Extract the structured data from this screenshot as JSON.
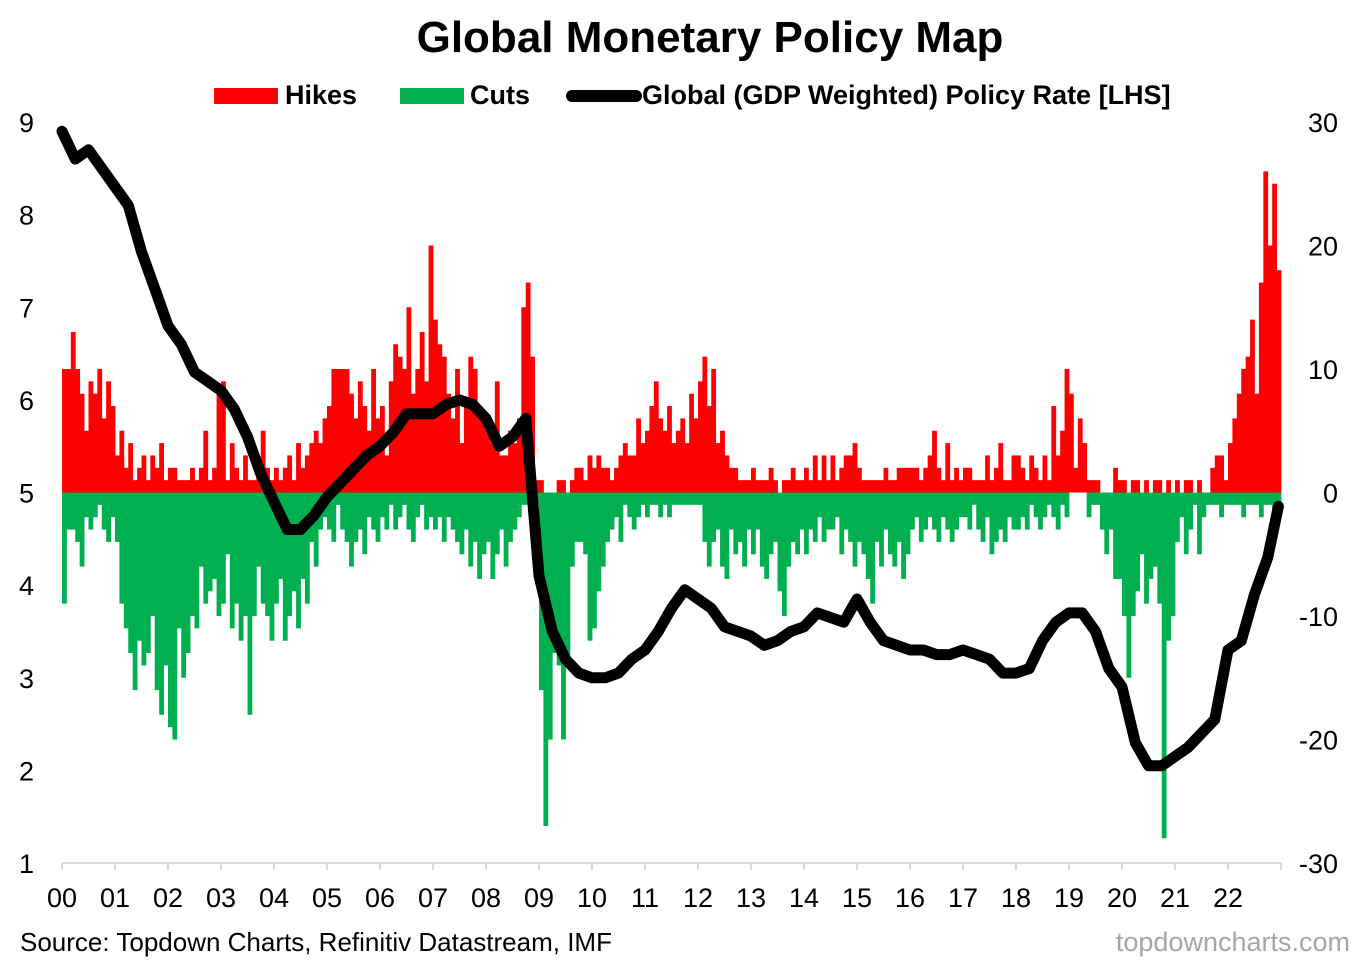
{
  "chart_data": {
    "type": "bar+line",
    "title": "Global Monetary Policy Map",
    "source": "Source: Topdown Charts, Refinitiv Datastream, IMF",
    "watermark": "topdowncharts.com",
    "legend": {
      "placement": "top",
      "entries": [
        {
          "label": "Hikes",
          "color": "#ff0000"
        },
        {
          "label": "Cuts",
          "color": "#00b050"
        },
        {
          "label": "Global (GDP Weighted) Policy Rate [LHS]",
          "color": "#000000"
        }
      ]
    },
    "x_tick_labels": [
      "00",
      "01",
      "02",
      "03",
      "04",
      "05",
      "06",
      "07",
      "08",
      "09",
      "10",
      "11",
      "12",
      "13",
      "14",
      "15",
      "16",
      "17",
      "18",
      "19",
      "20",
      "21",
      "22"
    ],
    "x_range": [
      2000,
      2023
    ],
    "left_axis": {
      "range": [
        1,
        9
      ],
      "ticks": [
        "1",
        "2",
        "3",
        "4",
        "5",
        "6",
        "7",
        "8",
        "9"
      ]
    },
    "right_axis": {
      "range": [
        -30,
        30
      ],
      "ticks": [
        "-30",
        "-20",
        "-10",
        "0",
        "10",
        "20",
        "30"
      ]
    },
    "bars_start": "2000-01",
    "bars_frequency": "monthly",
    "hikes": [
      10,
      10,
      13,
      10,
      8,
      5,
      9,
      8,
      10,
      6,
      9,
      7,
      3,
      5,
      2,
      4,
      1,
      2,
      3,
      1,
      3,
      2,
      4,
      1,
      2,
      2,
      1,
      1,
      1,
      2,
      1,
      2,
      5,
      1,
      2,
      8,
      9,
      1,
      4,
      2,
      1,
      3,
      1,
      1,
      2,
      5,
      2,
      1,
      2,
      1,
      2,
      3,
      1,
      4,
      2,
      3,
      4,
      5,
      4,
      6,
      7,
      10,
      10,
      10,
      10,
      8,
      6,
      9,
      7,
      5,
      10,
      6,
      7,
      3,
      9,
      12,
      11,
      10,
      15,
      8,
      10,
      13,
      9,
      20,
      14,
      12,
      11,
      8,
      6,
      10,
      4,
      7,
      11,
      10,
      7,
      6,
      5,
      4,
      9,
      3,
      3,
      5,
      4,
      6,
      15,
      17,
      11,
      1,
      1,
      0,
      0,
      0,
      1,
      1,
      0,
      1,
      2,
      2,
      1,
      3,
      2,
      3,
      2,
      2,
      1,
      2,
      3,
      4,
      3,
      3,
      6,
      4,
      5,
      7,
      9,
      6,
      5,
      7,
      4,
      5,
      6,
      4,
      8,
      6,
      9,
      11,
      7,
      10,
      4,
      5,
      3,
      2,
      2,
      1,
      1,
      1,
      2,
      1,
      1,
      1,
      2,
      1,
      0,
      1,
      1,
      2,
      1,
      1,
      2,
      1,
      3,
      1,
      3,
      1,
      3,
      1,
      2,
      3,
      3,
      4,
      2,
      1,
      1,
      1,
      1,
      1,
      2,
      1,
      1,
      2,
      2,
      2,
      2,
      2,
      1,
      2,
      3,
      5,
      2,
      1,
      4,
      1,
      2,
      1,
      2,
      2,
      1,
      1,
      1,
      3,
      1,
      2,
      4,
      1,
      1,
      3,
      3,
      2,
      1,
      3,
      2,
      1,
      3,
      1,
      7,
      3,
      5,
      10,
      8,
      2,
      6,
      4,
      1,
      1,
      1,
      0,
      0,
      0,
      2,
      1,
      1,
      0,
      1,
      1,
      0,
      1,
      0,
      1,
      1,
      0,
      1,
      0,
      1,
      0,
      1,
      1,
      0,
      1,
      0,
      0,
      2,
      3,
      3,
      1,
      4,
      6,
      8,
      10,
      11,
      14,
      8,
      17,
      26,
      20,
      25,
      18
    ],
    "cuts": [
      -9,
      -3,
      -3,
      -4,
      -6,
      -2,
      -3,
      -2,
      -1,
      -3,
      -4,
      -2,
      -4,
      -9,
      -11,
      -13,
      -16,
      -12,
      -14,
      -13,
      -10,
      -16,
      -18,
      -14,
      -19,
      -20,
      -11,
      -15,
      -13,
      -10,
      -11,
      -6,
      -9,
      -8,
      -7,
      -10,
      -9,
      -5,
      -11,
      -9,
      -12,
      -10,
      -18,
      -10,
      -6,
      -9,
      -10,
      -12,
      -9,
      -7,
      -12,
      -10,
      -8,
      -11,
      -7,
      -9,
      -4,
      -6,
      -3,
      -2,
      -3,
      -4,
      -1,
      -3,
      -4,
      -6,
      -4,
      -3,
      -5,
      -2,
      -3,
      -4,
      -2,
      -3,
      -1,
      -3,
      -2,
      -1,
      -3,
      -4,
      -2,
      -1,
      -3,
      -2,
      -3,
      -2,
      -4,
      -2,
      -3,
      -4,
      -5,
      -3,
      -6,
      -4,
      -7,
      -5,
      -4,
      -7,
      -5,
      -3,
      -6,
      -4,
      -3,
      -2,
      -1,
      -1,
      -2,
      -1,
      -16,
      -27,
      -20,
      -13,
      -14,
      -20,
      -14,
      -6,
      -4,
      -4,
      -5,
      -12,
      -11,
      -8,
      -6,
      -4,
      -3,
      -2,
      -4,
      -1,
      -2,
      -3,
      -2,
      -1,
      -2,
      -1,
      -1,
      -2,
      -1,
      -2,
      -1,
      -1,
      -1,
      -1,
      -1,
      -1,
      -1,
      -4,
      -6,
      -4,
      -3,
      -6,
      -7,
      -3,
      -5,
      -4,
      -6,
      -3,
      -5,
      -3,
      -6,
      -7,
      -5,
      -4,
      -8,
      -10,
      -6,
      -4,
      -5,
      -3,
      -5,
      -3,
      -4,
      -2,
      -4,
      -3,
      -3,
      -2,
      -5,
      -3,
      -4,
      -6,
      -4,
      -5,
      -7,
      -9,
      -4,
      -6,
      -3,
      -5,
      -6,
      -4,
      -7,
      -5,
      -3,
      -2,
      -4,
      -3,
      -2,
      -3,
      -4,
      -2,
      -3,
      -4,
      -3,
      -2,
      -2,
      -3,
      -1,
      -3,
      -4,
      -2,
      -5,
      -4,
      -3,
      -4,
      -2,
      -3,
      -3,
      -2,
      -3,
      -1,
      -2,
      -3,
      -2,
      -1,
      -2,
      -3,
      -1,
      -2,
      0,
      0,
      0,
      0,
      -2,
      -1,
      -1,
      -3,
      -5,
      -3,
      -7,
      -7,
      -10,
      -15,
      -10,
      -8,
      -5,
      -9,
      -7,
      -6,
      -9,
      -28,
      -12,
      -10,
      -4,
      -2,
      -5,
      -3,
      -1,
      -5,
      -2,
      -1,
      -1,
      -1,
      -2,
      -1,
      -1,
      -1,
      -1,
      -2,
      -1,
      -1,
      -1,
      -2,
      -1,
      -1,
      -2,
      -2
    ],
    "policy_rate": {
      "x": [
        2000,
        2000.25,
        2000.5,
        2000.75,
        2001,
        2001.25,
        2001.5,
        2001.75,
        2002,
        2002.25,
        2002.5,
        2002.75,
        2003,
        2003.25,
        2003.5,
        2003.75,
        2004,
        2004.25,
        2004.5,
        2004.75,
        2005,
        2005.25,
        2005.5,
        2005.75,
        2006,
        2006.25,
        2006.5,
        2006.75,
        2007,
        2007.25,
        2007.5,
        2007.75,
        2008,
        2008.25,
        2008.5,
        2008.75,
        2009,
        2009.25,
        2009.5,
        2009.75,
        2010,
        2010.25,
        2010.5,
        2010.75,
        2011,
        2011.25,
        2011.5,
        2011.75,
        2012,
        2012.25,
        2012.5,
        2012.75,
        2013,
        2013.25,
        2013.5,
        2013.75,
        2014,
        2014.25,
        2014.5,
        2014.75,
        2015,
        2015.25,
        2015.5,
        2015.75,
        2016,
        2016.25,
        2016.5,
        2016.75,
        2017,
        2017.25,
        2017.5,
        2017.75,
        2018,
        2018.25,
        2018.5,
        2018.75,
        2019,
        2019.25,
        2019.5,
        2019.75,
        2020,
        2020.25,
        2020.5,
        2020.75,
        2021,
        2021.25,
        2021.5,
        2021.75,
        2022,
        2022.25,
        2022.5,
        2022.75,
        2022.95
      ],
      "y": [
        8.9,
        8.6,
        8.7,
        8.5,
        8.3,
        8.1,
        7.6,
        7.2,
        6.8,
        6.6,
        6.3,
        6.2,
        6.1,
        5.9,
        5.6,
        5.2,
        4.9,
        4.6,
        4.6,
        4.75,
        4.95,
        5.1,
        5.25,
        5.4,
        5.5,
        5.65,
        5.85,
        5.85,
        5.85,
        5.95,
        6.0,
        5.95,
        5.8,
        5.5,
        5.6,
        5.8,
        4.1,
        3.5,
        3.2,
        3.05,
        3.0,
        3.0,
        3.05,
        3.2,
        3.3,
        3.5,
        3.75,
        3.95,
        3.85,
        3.75,
        3.55,
        3.5,
        3.45,
        3.35,
        3.4,
        3.5,
        3.55,
        3.7,
        3.65,
        3.6,
        3.85,
        3.6,
        3.4,
        3.35,
        3.3,
        3.3,
        3.25,
        3.25,
        3.3,
        3.25,
        3.2,
        3.05,
        3.05,
        3.1,
        3.4,
        3.6,
        3.7,
        3.7,
        3.5,
        3.1,
        2.9,
        2.3,
        2.05,
        2.05,
        2.15,
        2.25,
        2.4,
        2.55,
        3.3,
        3.4,
        3.9,
        4.3,
        4.85
      ]
    }
  }
}
